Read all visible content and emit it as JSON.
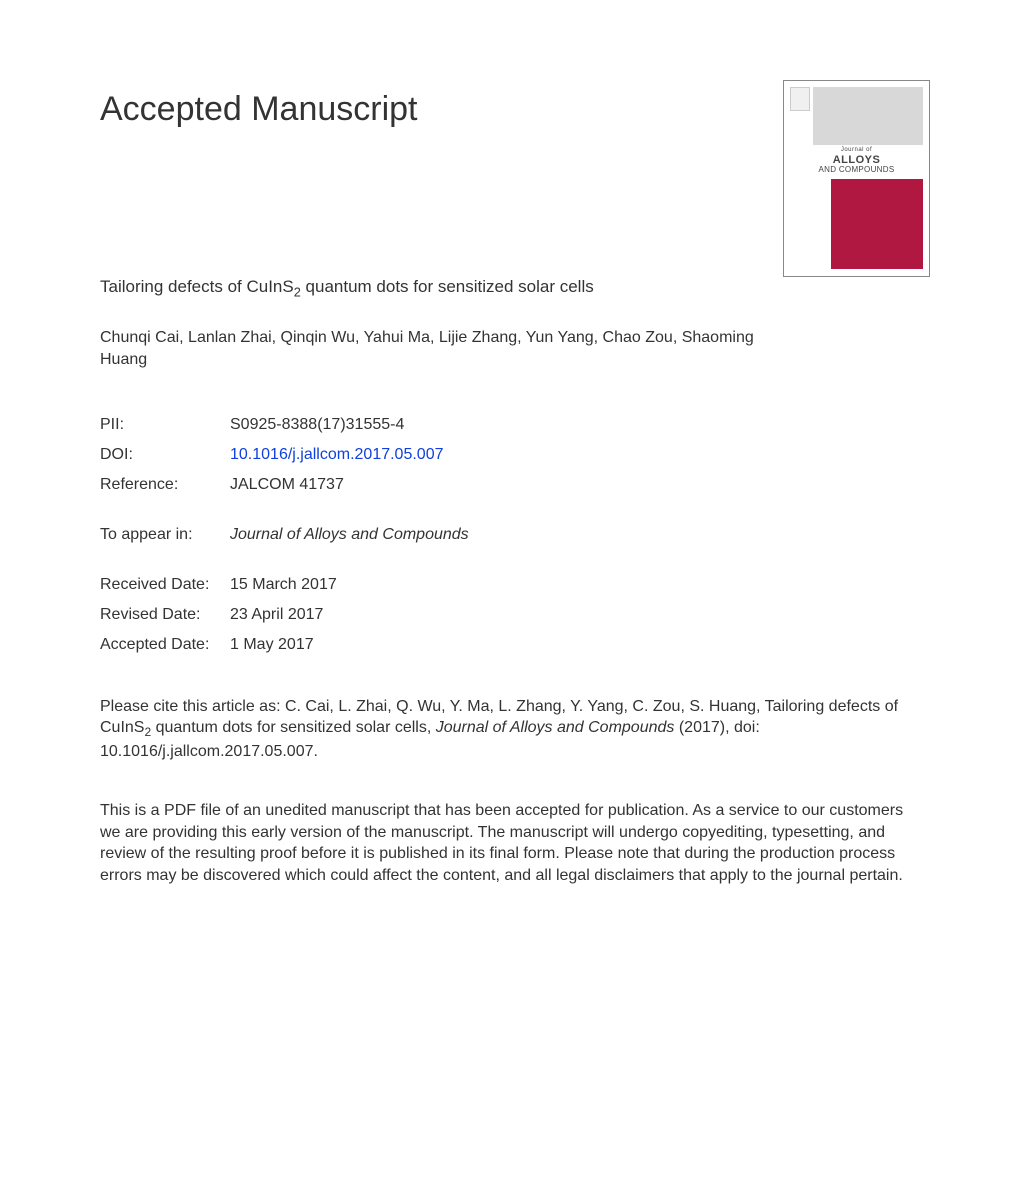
{
  "page_title": "Accepted Manuscript",
  "article_title_pre": "Tailoring defects of CuInS",
  "article_title_sub": "2",
  "article_title_post": " quantum dots for sensitized solar cells",
  "authors": "Chunqi Cai, Lanlan Zhai, Qinqin Wu, Yahui Ma, Lijie Zhang, Yun Yang, Chao Zou, Shaoming Huang",
  "meta": {
    "pii_label": "PII:",
    "pii_value": "S0925-8388(17)31555-4",
    "doi_label": "DOI:",
    "doi_value": "10.1016/j.jallcom.2017.05.007",
    "reference_label": "Reference:",
    "reference_value": "JALCOM 41737",
    "appear_label": "To appear in:",
    "appear_value": "Journal of Alloys and Compounds",
    "received_label": "Received Date:",
    "received_value": "15 March 2017",
    "revised_label": "Revised Date:",
    "revised_value": "23 April 2017",
    "accepted_label": "Accepted Date:",
    "accepted_value": "1 May 2017"
  },
  "citation_pre": "Please cite this article as: C. Cai, L. Zhai, Q. Wu, Y. Ma, L. Zhang, Y. Yang, C. Zou, S. Huang, Tailoring defects of CuInS",
  "citation_sub": "2",
  "citation_mid": " quantum dots for sensitized solar cells, ",
  "citation_journal": "Journal of Alloys and Compounds",
  "citation_post": " (2017), doi: 10.1016/j.jallcom.2017.05.007.",
  "disclaimer": "This is a PDF file of an unedited manuscript that has been accepted for publication. As a service to our customers we are providing this early version of the manuscript. The manuscript will undergo copyediting, typesetting, and review of the resulting proof before it is published in its final form. Please note that during the production process errors may be discovered which could affect the content, and all legal disclaimers that apply to the journal pertain.",
  "cover": {
    "journal_of": "Journal of",
    "alloys": "ALLOYS",
    "compounds": "AND COMPOUNDS",
    "accent_color": "#b01842",
    "grey_color": "#d8d8d8"
  }
}
